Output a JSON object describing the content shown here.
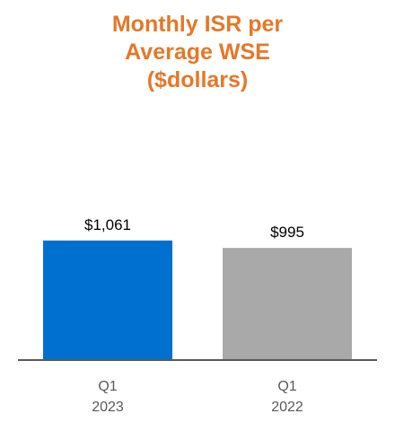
{
  "chart_data": {
    "type": "bar",
    "title_lines": [
      "Monthly ISR per",
      "Average WSE",
      "($dollars)"
    ],
    "categories": [
      {
        "line1": "Q1",
        "line2": "2023"
      },
      {
        "line1": "Q1",
        "line2": "2022"
      }
    ],
    "values": [
      1061,
      995
    ],
    "value_labels": [
      "$1,061",
      "$995"
    ],
    "bar_colors": [
      "#0070D0",
      "#A9A9A9"
    ],
    "baseline_color": "#595959",
    "ylim": [
      0,
      1200
    ],
    "grid": false,
    "legend": "none"
  }
}
